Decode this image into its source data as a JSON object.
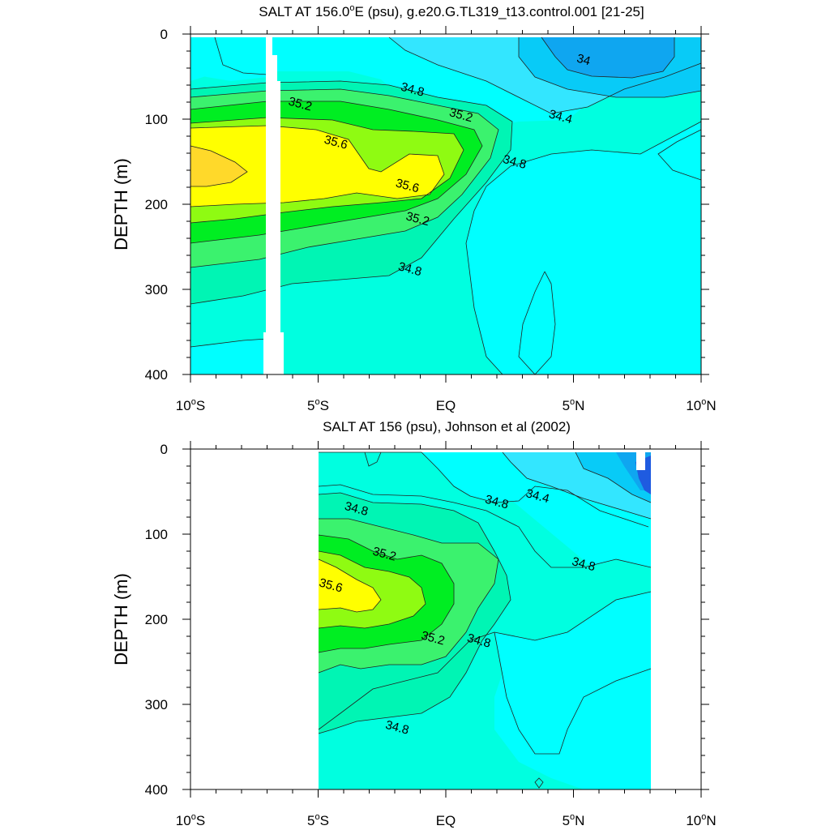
{
  "colors": {
    "sal_33_6": "#1f5be0",
    "sal_33_8": "#0fa6f0",
    "sal_34_0": "#08cbf7",
    "sal_34_2": "#33e6ff",
    "sal_34_4": "#00ffff",
    "sal_34_6": "#00ffe0",
    "sal_34_8": "#00f5b4",
    "sal_35_0": "#3bf26e",
    "sal_35_2": "#00ee22",
    "sal_35_4": "#8ffb12",
    "sal_35_6": "#ffff00",
    "sal_35_8": "#ffd92a",
    "contour_line": "#222222",
    "missing": "#ffffff"
  },
  "chart_data": [
    {
      "type": "heatmap",
      "title": "SALT AT 156.0°E (psu), g.e20.G.TL319_t13.control.001 [21-25]",
      "title_main": "SALT AT 156.0",
      "title_sup": "o",
      "title_rest": "E (psu), g.e20.G.TL319_t13.control.001 [21-25]",
      "ylabel": "DEPTH (m)",
      "xlabel": "",
      "xlim": [
        -10,
        10
      ],
      "ylim": [
        400,
        0
      ],
      "x_ticks": [
        -10,
        -5,
        0,
        5,
        10
      ],
      "x_tick_labels": [
        {
          "main": "10",
          "sup": "o",
          "rest": "S"
        },
        {
          "main": "5",
          "sup": "o",
          "rest": "S"
        },
        {
          "main": "EQ",
          "sup": "",
          "rest": ""
        },
        {
          "main": "5",
          "sup": "o",
          "rest": "N"
        },
        {
          "main": "10",
          "sup": "o",
          "rest": "N"
        }
      ],
      "y_ticks": [
        0,
        100,
        200,
        300,
        400
      ],
      "y_tick_labels": [
        "0",
        "100",
        "200",
        "300",
        "400"
      ],
      "contour_labels": [
        {
          "text": "34",
          "x": 5.4,
          "y": 30
        },
        {
          "text": "34.8",
          "x": -1.3,
          "y": 65
        },
        {
          "text": "35.2",
          "x": -5.7,
          "y": 82
        },
        {
          "text": "35.2",
          "x": 0.6,
          "y": 95
        },
        {
          "text": "34.4",
          "x": 4.5,
          "y": 97
        },
        {
          "text": "35.6",
          "x": -4.3,
          "y": 127
        },
        {
          "text": "34.8",
          "x": 2.7,
          "y": 150
        },
        {
          "text": "35.6",
          "x": -1.5,
          "y": 178
        },
        {
          "text": "35.2",
          "x": -1.1,
          "y": 217
        },
        {
          "text": "34.8",
          "x": -1.4,
          "y": 276
        }
      ]
    },
    {
      "type": "heatmap",
      "title": "SALT AT 156 (psu), Johnson et al (2002)",
      "ylabel": "DEPTH (m)",
      "xlabel": "",
      "xlim": [
        -10,
        10
      ],
      "ylim": [
        400,
        0
      ],
      "data_x_range": [
        -5,
        8
      ],
      "x_ticks": [
        -10,
        -5,
        0,
        5,
        10
      ],
      "x_tick_labels": [
        {
          "main": "10",
          "sup": "o",
          "rest": "S"
        },
        {
          "main": "5",
          "sup": "o",
          "rest": "S"
        },
        {
          "main": "EQ",
          "sup": "",
          "rest": ""
        },
        {
          "main": "5",
          "sup": "o",
          "rest": "N"
        },
        {
          "main": "10",
          "sup": "o",
          "rest": "N"
        }
      ],
      "y_ticks": [
        0,
        100,
        200,
        300,
        400
      ],
      "y_tick_labels": [
        "0",
        "100",
        "200",
        "300",
        "400"
      ],
      "contour_labels": [
        {
          "text": "34.8",
          "x": -3.5,
          "y": 70
        },
        {
          "text": "34.8",
          "x": 2.0,
          "y": 62
        },
        {
          "text": "34.4",
          "x": 3.6,
          "y": 55
        },
        {
          "text": "35.2",
          "x": -2.4,
          "y": 123
        },
        {
          "text": "34.8",
          "x": 5.4,
          "y": 135
        },
        {
          "text": "35.6",
          "x": -4.5,
          "y": 160
        },
        {
          "text": "35.2",
          "x": -0.5,
          "y": 222
        },
        {
          "text": "34.8",
          "x": 1.3,
          "y": 225
        },
        {
          "text": "34.8",
          "x": -1.9,
          "y": 327
        }
      ]
    }
  ]
}
